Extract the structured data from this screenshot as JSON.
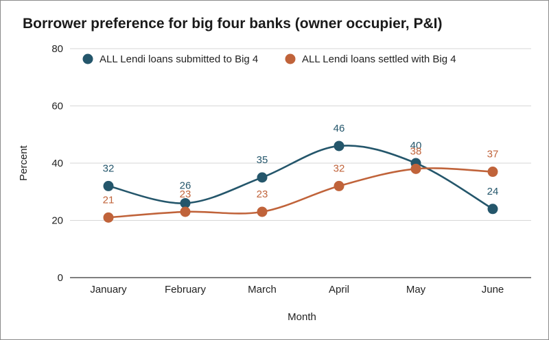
{
  "chart_data": {
    "type": "line",
    "title": "Borrower preference for big four banks (owner occupier, P&I)",
    "xlabel": "Month",
    "ylabel": "Percent",
    "categories": [
      "January",
      "February",
      "March",
      "April",
      "May",
      "June"
    ],
    "ylim": [
      0,
      80
    ],
    "yticks": [
      0,
      20,
      40,
      60,
      80
    ],
    "grid": true,
    "legend_position": "top",
    "series": [
      {
        "name": "ALL Lendi loans submitted to Big 4",
        "color": "#24566b",
        "values": [
          32,
          26,
          35,
          46,
          40,
          24
        ]
      },
      {
        "name": "ALL Lendi loans settled with Big 4",
        "color": "#c0633a",
        "values": [
          21,
          23,
          23,
          32,
          38,
          37
        ]
      }
    ]
  }
}
